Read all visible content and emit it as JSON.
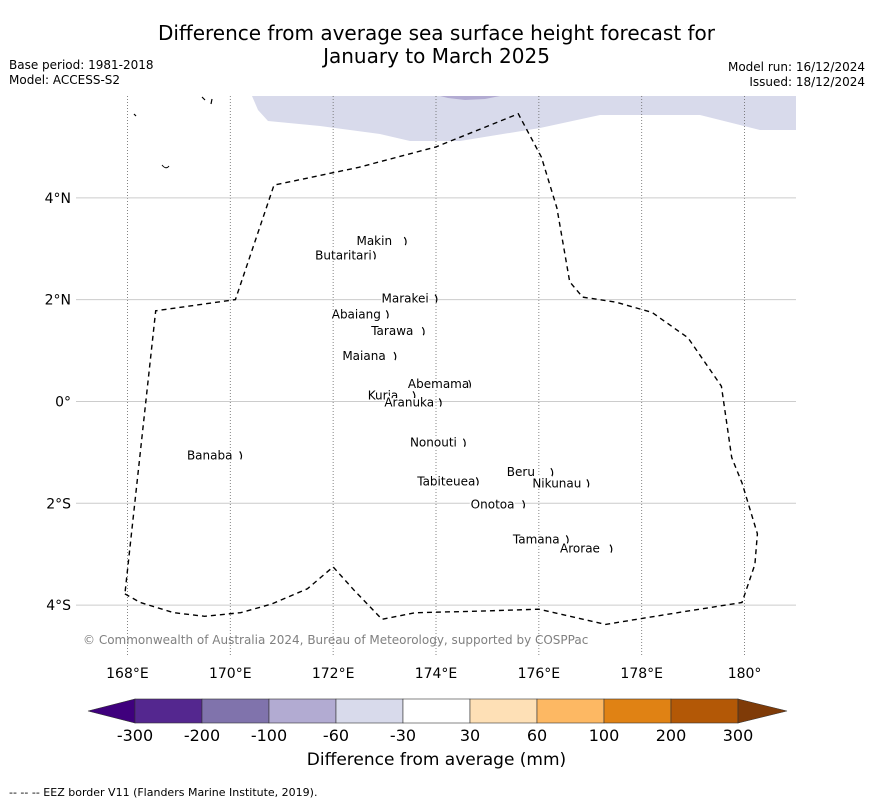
{
  "title_line1": "Difference from average sea surface height forecast for",
  "title_line2": "January to March 2025",
  "meta_left": {
    "base_period": "Base period: 1981-2018",
    "model": "Model: ACCESS-S2"
  },
  "meta_right": {
    "model_run": "Model run: 16/12/2024",
    "issued": "Issued: 18/12/2024"
  },
  "copyright": "© Commonwealth of Australia 2024, Bureau of Meteorology, supported by COSPPac",
  "map": {
    "lon_range": [
      167,
      181
    ],
    "lat_range": [
      -5,
      6
    ],
    "lon_ticks": [
      {
        "value": 168,
        "label": "168°E"
      },
      {
        "value": 170,
        "label": "170°E"
      },
      {
        "value": 172,
        "label": "172°E"
      },
      {
        "value": 174,
        "label": "174°E"
      },
      {
        "value": 176,
        "label": "176°E"
      },
      {
        "value": 178,
        "label": "178°E"
      },
      {
        "value": 180,
        "label": "180°"
      }
    ],
    "lat_ticks": [
      {
        "value": 4,
        "label": "4°N"
      },
      {
        "value": 2,
        "label": "2°N"
      },
      {
        "value": 0,
        "label": "0°"
      },
      {
        "value": -2,
        "label": "2°S"
      },
      {
        "value": -4,
        "label": "4°S"
      }
    ],
    "islands": [
      {
        "name": "Makin",
        "lon": 172.8,
        "lat": 3.15
      },
      {
        "name": "Butaritari",
        "lon": 172.2,
        "lat": 2.87
      },
      {
        "name": "Marakei",
        "lon": 173.4,
        "lat": 2.02
      },
      {
        "name": "Abaiang",
        "lon": 172.45,
        "lat": 1.71
      },
      {
        "name": "Tarawa",
        "lon": 173.15,
        "lat": 1.38
      },
      {
        "name": "Maiana",
        "lon": 172.6,
        "lat": 0.89
      },
      {
        "name": "Abemama",
        "lon": 174.05,
        "lat": 0.34
      },
      {
        "name": "Kuria",
        "lon": 172.97,
        "lat": 0.12
      },
      {
        "name": "Aranuka",
        "lon": 173.48,
        "lat": -0.02
      },
      {
        "name": "Nonouti",
        "lon": 173.95,
        "lat": -0.81
      },
      {
        "name": "Banaba",
        "lon": 169.6,
        "lat": -1.06
      },
      {
        "name": "Beru",
        "lon": 175.65,
        "lat": -1.39
      },
      {
        "name": "Tabiteuea",
        "lon": 174.2,
        "lat": -1.57
      },
      {
        "name": "Nikunau",
        "lon": 176.35,
        "lat": -1.61
      },
      {
        "name": "Onotoa",
        "lon": 175.1,
        "lat": -2.02
      },
      {
        "name": "Tamana",
        "lon": 175.95,
        "lat": -2.71
      },
      {
        "name": "Arorae",
        "lon": 176.8,
        "lat": -2.89
      }
    ],
    "eez_border": [
      [
        167.95,
        -3.78
      ],
      [
        168.25,
        -3.95
      ],
      [
        168.9,
        -4.15
      ],
      [
        169.5,
        -4.22
      ],
      [
        170.2,
        -4.15
      ],
      [
        170.8,
        -3.98
      ],
      [
        171.5,
        -3.68
      ],
      [
        172.0,
        -3.25
      ],
      [
        172.4,
        -3.7
      ],
      [
        172.95,
        -4.28
      ],
      [
        173.6,
        -4.15
      ],
      [
        174.8,
        -4.12
      ],
      [
        176.0,
        -4.08
      ],
      [
        177.3,
        -4.38
      ],
      [
        178.5,
        -4.18
      ],
      [
        179.95,
        -3.95
      ],
      [
        180.2,
        -3.2
      ],
      [
        180.25,
        -2.6
      ],
      [
        179.95,
        -1.6
      ],
      [
        179.75,
        -1.1
      ],
      [
        179.55,
        0.3
      ],
      [
        178.9,
        1.25
      ],
      [
        178.2,
        1.75
      ],
      [
        177.5,
        1.95
      ],
      [
        176.85,
        2.05
      ],
      [
        176.6,
        2.35
      ],
      [
        176.35,
        3.8
      ],
      [
        176.05,
        4.8
      ],
      [
        175.6,
        5.65
      ],
      [
        174.0,
        5.0
      ],
      [
        172.5,
        4.6
      ],
      [
        170.85,
        4.25
      ],
      [
        170.1,
        2.0
      ],
      [
        168.55,
        1.78
      ],
      [
        167.95,
        -3.78
      ]
    ]
  },
  "colorbar": {
    "colors": [
      "#3f007d",
      "#54278f",
      "#8073ac",
      "#b2abd2",
      "#d8daeb",
      "#ffffff",
      "#fee0b6",
      "#fdb863",
      "#e08214",
      "#b35806",
      "#7f3b08"
    ],
    "ticks": [
      "-300",
      "-200",
      "-100",
      "-60",
      "-30",
      "30",
      "60",
      "100",
      "200",
      "300"
    ],
    "label": "Difference from average (mm)"
  },
  "footer": "--  --  -- EEZ border V11 (Flanders Marine Institute, 2019)."
}
